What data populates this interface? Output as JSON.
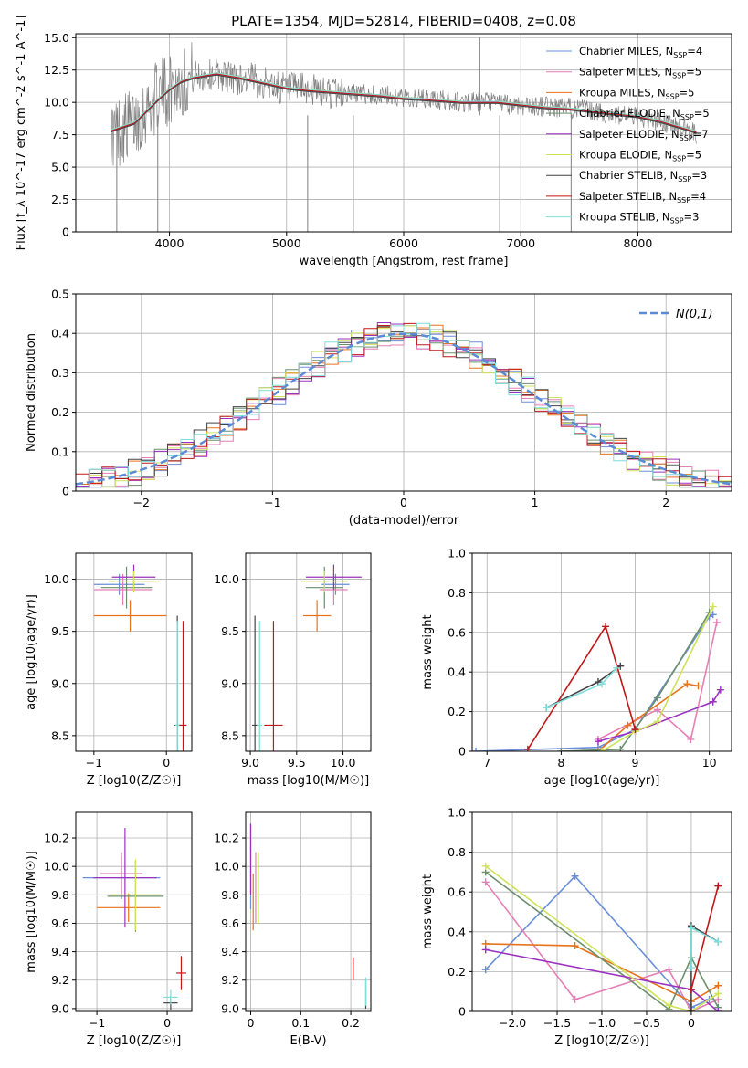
{
  "figure": {
    "title": "PLATE=1354, MJD=52814, FIBERID=0408, z=0.08"
  },
  "series_styles": [
    {
      "name": "Chabrier MILES",
      "nssp": "4",
      "color": "#6a8fd8"
    },
    {
      "name": "Salpeter MILES",
      "nssp": "5",
      "color": "#e67fb5"
    },
    {
      "name": "Kroupa MILES",
      "nssp": "5",
      "color": "#e8731b"
    },
    {
      "name": "Chabrier ELODIE",
      "nssp": "5",
      "color": "#6b8f6e"
    },
    {
      "name": "Salpeter ELODIE",
      "nssp": "7",
      "color": "#9b31c0"
    },
    {
      "name": "Kroupa ELODIE",
      "nssp": "5",
      "color": "#cfe35a"
    },
    {
      "name": "Chabrier STELIB",
      "nssp": "3",
      "color": "#444444"
    },
    {
      "name": "Salpeter STELIB",
      "nssp": "4",
      "color": "#c01818"
    },
    {
      "name": "Kroupa STELIB",
      "nssp": "3",
      "color": "#7fdedc"
    }
  ],
  "chart_data": [
    {
      "id": "spectrum",
      "type": "line",
      "title": "PLATE=1354, MJD=52814, FIBERID=0408, z=0.08",
      "xlabel": "wavelength [Angstrom, rest frame]",
      "ylabel": "Flux [f_λ 10^-17 erg cm^-2 s^-1 A^-1]",
      "xlim": [
        3200,
        8800
      ],
      "ylim": [
        0,
        15.3
      ],
      "xticks": [
        4000,
        5000,
        6000,
        7000,
        8000
      ],
      "yticks": [
        0.0,
        2.5,
        5.0,
        7.5,
        10.0,
        12.5,
        15.0
      ],
      "data_color": "#808080",
      "data_x": [
        3500,
        3600,
        3700,
        3800,
        3900,
        4000,
        4100,
        4200,
        4300,
        4400,
        4500,
        4600,
        4700,
        4800,
        4900,
        5000,
        5100,
        5200,
        5300,
        5400,
        5500,
        5600,
        5700,
        5800,
        5900,
        6000,
        6100,
        6200,
        6300,
        6400,
        6500,
        6600,
        6700,
        6800,
        6900,
        7000,
        7100,
        7200,
        7300,
        7400,
        7500,
        7600,
        7700,
        7800,
        7900,
        8000,
        8100,
        8200,
        8300,
        8400,
        8500
      ],
      "data_y": [
        7.5,
        8.0,
        8.5,
        9.5,
        10.5,
        11.0,
        11.5,
        12.0,
        12.0,
        12.2,
        12.0,
        11.8,
        11.8,
        11.5,
        11.3,
        11.0,
        11.0,
        11.0,
        10.8,
        10.8,
        10.7,
        10.7,
        10.6,
        10.5,
        10.5,
        10.3,
        10.3,
        10.2,
        10.2,
        10.1,
        10.0,
        10.0,
        10.0,
        10.0,
        9.8,
        9.8,
        9.7,
        9.7,
        9.6,
        9.6,
        9.5,
        9.3,
        9.2,
        9.0,
        9.0,
        8.8,
        8.6,
        8.5,
        8.3,
        8.0,
        7.6
      ],
      "model_x": [
        3500,
        3700,
        3900,
        4000,
        4100,
        4200,
        4400,
        4600,
        4800,
        5000,
        5200,
        5500,
        5800,
        6000,
        6200,
        6500,
        6800,
        7000,
        7200,
        7400,
        7600,
        7800,
        8000,
        8200,
        8500
      ],
      "model_y": [
        7.8,
        8.4,
        10.2,
        11.0,
        11.6,
        11.9,
        12.2,
        11.9,
        11.5,
        11.1,
        10.9,
        10.7,
        10.5,
        10.3,
        10.2,
        10.0,
        10.0,
        9.8,
        9.6,
        9.5,
        9.3,
        9.1,
        8.9,
        8.5,
        7.7
      ]
    },
    {
      "id": "residuals",
      "type": "line",
      "xlabel": "(data-model)/error",
      "ylabel": "Normed distribution",
      "xlim": [
        -2.5,
        2.5
      ],
      "ylim": [
        0,
        0.5
      ],
      "xticks": [
        -2,
        -1,
        0,
        1,
        2
      ],
      "yticks": [
        0.0,
        0.1,
        0.2,
        0.3,
        0.4,
        0.5
      ],
      "legend": "N(0,1)",
      "legend_position": "top-right",
      "gaussian_color": "#5b8bd6"
    },
    {
      "id": "age-vs-Z",
      "type": "scatter",
      "xlabel": "Z [log10(Z/Z☉)]",
      "ylabel": "age  [log10(age/yr)]",
      "xlim": [
        -1.25,
        0.35
      ],
      "ylim": [
        8.35,
        10.25
      ],
      "xticks": [
        -1,
        0
      ],
      "yticks": [
        8.5,
        9.0,
        9.5,
        10.0
      ],
      "points": [
        {
          "x": -0.65,
          "y": 9.95,
          "xerr": 0.35,
          "yerr": 0.1
        },
        {
          "x": -0.6,
          "y": 9.9,
          "xerr": 0.4,
          "yerr": 0.15
        },
        {
          "x": -0.5,
          "y": 9.65,
          "xerr": 0.5,
          "yerr": 0.15
        },
        {
          "x": -0.55,
          "y": 9.92,
          "xerr": 0.35,
          "yerr": 0.2
        },
        {
          "x": -0.45,
          "y": 10.02,
          "xerr": 0.3,
          "yerr": 0.12
        },
        {
          "x": -0.45,
          "y": 9.98,
          "xerr": 0.35,
          "yerr": 0.1
        },
        {
          "x": 0.15,
          "y": 8.6,
          "xerr": 0.05,
          "yerr": 1.05
        },
        {
          "x": 0.23,
          "y": 8.6,
          "xerr": 0.05,
          "yerr": 1.0
        },
        {
          "x": 0.15,
          "y": 8.6,
          "xerr": 0.03,
          "yerr": 1.0
        }
      ]
    },
    {
      "id": "age-vs-mass",
      "type": "scatter",
      "xlabel": "mass [log10(M/M☉)]",
      "ylabel": "",
      "xlim": [
        8.95,
        10.3
      ],
      "ylim": [
        8.35,
        10.25
      ],
      "xticks": [
        9.0,
        9.5,
        10.0
      ],
      "yticks": [
        8.5,
        9.0,
        9.5,
        10.0
      ],
      "points": [
        {
          "x": 9.92,
          "y": 9.95,
          "xerr": 0.15,
          "yerr": 0.1
        },
        {
          "x": 9.9,
          "y": 9.9,
          "xerr": 0.15,
          "yerr": 0.15
        },
        {
          "x": 9.72,
          "y": 9.65,
          "xerr": 0.15,
          "yerr": 0.15
        },
        {
          "x": 9.8,
          "y": 9.92,
          "xerr": 0.2,
          "yerr": 0.2
        },
        {
          "x": 9.9,
          "y": 10.02,
          "xerr": 0.3,
          "yerr": 0.12
        },
        {
          "x": 9.8,
          "y": 9.98,
          "xerr": 0.25,
          "yerr": 0.1
        },
        {
          "x": 9.05,
          "y": 8.6,
          "xerr": 0.03,
          "yerr": 1.05
        },
        {
          "x": 9.25,
          "y": 8.6,
          "xerr": 0.1,
          "yerr": 1.0
        },
        {
          "x": 9.1,
          "y": 8.6,
          "xerr": 0.03,
          "yerr": 1.0
        }
      ]
    },
    {
      "id": "weight-vs-age",
      "type": "line",
      "xlabel": "age  [log10(age/yr)]",
      "ylabel": "mass weight",
      "xlim": [
        6.8,
        10.3
      ],
      "ylim": [
        0,
        1.0
      ],
      "xticks": [
        7,
        8,
        9,
        10
      ],
      "yticks": [
        0.0,
        0.2,
        0.4,
        0.6,
        0.8,
        1.0
      ],
      "series": [
        {
          "x": [
            6.85,
            8.5,
            9.0,
            10.0,
            10.05
          ],
          "y": [
            0.0,
            0.02,
            0.11,
            0.68,
            0.69
          ]
        },
        {
          "x": [
            8.5,
            9.3,
            9.75,
            10.1
          ],
          "y": [
            0.06,
            0.21,
            0.06,
            0.65
          ]
        },
        {
          "x": [
            8.5,
            8.9,
            9.7,
            9.85
          ],
          "y": [
            0.0,
            0.13,
            0.34,
            0.33
          ]
        },
        {
          "x": [
            8.0,
            8.8,
            9.3,
            10.0
          ],
          "y": [
            0.0,
            0.01,
            0.27,
            0.7
          ]
        },
        {
          "x": [
            8.5,
            9.0,
            10.05,
            10.15
          ],
          "y": [
            0.05,
            0.1,
            0.25,
            0.31
          ]
        },
        {
          "x": [
            8.55,
            9.0,
            9.3,
            10.05
          ],
          "y": [
            0.0,
            0.1,
            0.15,
            0.73
          ]
        },
        {
          "x": [
            7.8,
            8.5,
            8.8
          ],
          "y": [
            0.22,
            0.35,
            0.43
          ]
        },
        {
          "x": [
            7.55,
            8.6,
            9.0
          ],
          "y": [
            0.01,
            0.63,
            0.11
          ]
        },
        {
          "x": [
            7.8,
            8.55,
            8.75
          ],
          "y": [
            0.22,
            0.34,
            0.42
          ]
        }
      ]
    },
    {
      "id": "mass-vs-Z",
      "type": "scatter",
      "xlabel": "Z [log10(Z/Z☉)]",
      "ylabel": "mass [log10(M/M☉)]",
      "xlim": [
        -1.3,
        0.35
      ],
      "ylim": [
        8.98,
        10.38
      ],
      "xticks": [
        -1,
        0
      ],
      "yticks": [
        9.0,
        9.2,
        9.4,
        9.6,
        9.8,
        10.0,
        10.2
      ],
      "points": [
        {
          "x": -0.65,
          "y": 9.92,
          "xerr": 0.55,
          "yerr": 0.15
        },
        {
          "x": -0.65,
          "y": 9.95,
          "xerr": 0.3,
          "yerr": 0.15
        },
        {
          "x": -0.55,
          "y": 9.71,
          "xerr": 0.45,
          "yerr": 0.1
        },
        {
          "x": -0.45,
          "y": 9.79,
          "xerr": 0.4,
          "yerr": 0.25
        },
        {
          "x": -0.6,
          "y": 9.92,
          "xerr": 0.45,
          "yerr": 0.35
        },
        {
          "x": -0.45,
          "y": 9.8,
          "xerr": 0.35,
          "yerr": 0.25
        },
        {
          "x": 0.05,
          "y": 9.04,
          "xerr": 0.1,
          "yerr": 0.05
        },
        {
          "x": 0.2,
          "y": 9.25,
          "xerr": 0.07,
          "yerr": 0.12
        },
        {
          "x": 0.05,
          "y": 9.08,
          "xerr": 0.1,
          "yerr": 0.05
        }
      ]
    },
    {
      "id": "mass-vs-EBV",
      "type": "scatter",
      "xlabel": "E(B-V)",
      "ylabel": "",
      "xlim": [
        -0.01,
        0.24
      ],
      "ylim": [
        8.98,
        10.38
      ],
      "xticks": [
        0.0,
        0.1,
        0.2
      ],
      "yticks": [
        9.0,
        9.2,
        9.4,
        9.6,
        9.8,
        10.0,
        10.2
      ],
      "points": [
        {
          "x": 0.0,
          "y": 10.0,
          "xerr": 0,
          "yerr": 0.3
        },
        {
          "x": 0.01,
          "y": 9.85,
          "xerr": 0,
          "yerr": 0.25
        },
        {
          "x": 0.005,
          "y": 9.75,
          "xerr": 0,
          "yerr": 0.2
        },
        {
          "x": 0.015,
          "y": 9.85,
          "xerr": 0,
          "yerr": 0.25
        },
        {
          "x": 0.0,
          "y": 10.05,
          "xerr": 0,
          "yerr": 0.25
        },
        {
          "x": 0.015,
          "y": 9.85,
          "xerr": 0,
          "yerr": 0.25
        },
        {
          "x": 0.23,
          "y": 9.1,
          "xerr": 0,
          "yerr": 0.1
        },
        {
          "x": 0.205,
          "y": 9.28,
          "xerr": 0,
          "yerr": 0.08
        },
        {
          "x": 0.23,
          "y": 9.12,
          "xerr": 0,
          "yerr": 0.1
        }
      ]
    },
    {
      "id": "weight-vs-Z",
      "type": "line",
      "xlabel": "Z [log10(Z/Z☉)]",
      "ylabel": "mass weight",
      "xlim": [
        -2.45,
        0.45
      ],
      "ylim": [
        0,
        1.0
      ],
      "xticks": [
        -2.0,
        -1.5,
        -1.0,
        -0.5,
        0.0
      ],
      "yticks": [
        0.0,
        0.2,
        0.4,
        0.6,
        0.8,
        1.0
      ],
      "series": [
        {
          "x": [
            -2.3,
            -1.3,
            0.0,
            0.2
          ],
          "y": [
            0.21,
            0.68,
            0.02,
            0.06
          ]
        },
        {
          "x": [
            -2.3,
            -1.3,
            -0.25,
            0.0,
            0.3
          ],
          "y": [
            0.65,
            0.06,
            0.21,
            0.0,
            0.06
          ]
        },
        {
          "x": [
            -2.3,
            -1.3,
            0.0,
            0.3
          ],
          "y": [
            0.34,
            0.33,
            0.05,
            0.13
          ]
        },
        {
          "x": [
            -2.3,
            -0.25,
            0.0,
            0.3
          ],
          "y": [
            0.7,
            0.01,
            0.27,
            0.02
          ]
        },
        {
          "x": [
            -2.3,
            0.0,
            0.3
          ],
          "y": [
            0.31,
            0.11,
            0.0
          ]
        },
        {
          "x": [
            -2.3,
            -0.25,
            0.0,
            0.3
          ],
          "y": [
            0.73,
            0.03,
            0.0,
            0.09
          ]
        },
        {
          "x": [
            0.0,
            0.0,
            0.3
          ],
          "y": [
            0.0,
            0.43,
            0.35
          ]
        },
        {
          "x": [
            0.0,
            0.3
          ],
          "y": [
            0.11,
            0.63
          ]
        },
        {
          "x": [
            0.0,
            0.0,
            0.3
          ],
          "y": [
            0.22,
            0.42,
            0.35
          ]
        }
      ]
    }
  ]
}
